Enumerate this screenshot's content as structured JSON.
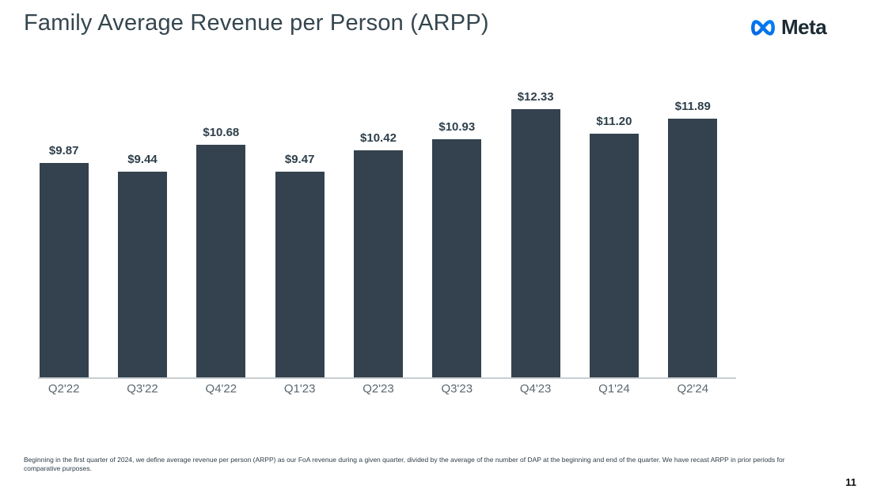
{
  "header": {
    "title": "Family Average Revenue per Person (ARPP)",
    "logo_text": "Meta"
  },
  "chart_data": {
    "type": "bar",
    "title": "Family Average Revenue per Person (ARPP)",
    "categories": [
      "Q2'22",
      "Q3'22",
      "Q4'22",
      "Q1'23",
      "Q2'23",
      "Q3'23",
      "Q4'23",
      "Q1'24",
      "Q2'24"
    ],
    "values": [
      9.87,
      9.44,
      10.68,
      9.47,
      10.42,
      10.93,
      12.33,
      11.2,
      11.89
    ],
    "labels": [
      "$9.87",
      "$9.44",
      "$10.68",
      "$9.47",
      "$10.42",
      "$10.93",
      "$12.33",
      "$11.20",
      "$11.89"
    ],
    "xlabel": "",
    "ylabel": "",
    "ylim": [
      0,
      13.1
    ],
    "grid": false,
    "legend": "none",
    "bar_color": "#33424E"
  },
  "footnote": "Beginning in the first quarter of 2024, we define average revenue per person (ARPP) as our FoA revenue during a given quarter, divided by the average of the number of DAP at the beginning and end of the quarter. We have recast ARPP in prior periods for comparative purposes.",
  "page_number": "11",
  "colors": {
    "bar": "#33424E",
    "title": "#35464F",
    "axis_line": "#C9CED1",
    "axis_label": "#5B6770",
    "logo_blue_dark": "#0668E1",
    "logo_blue_light": "#0081FB",
    "logo_text": "#1C2B33"
  }
}
